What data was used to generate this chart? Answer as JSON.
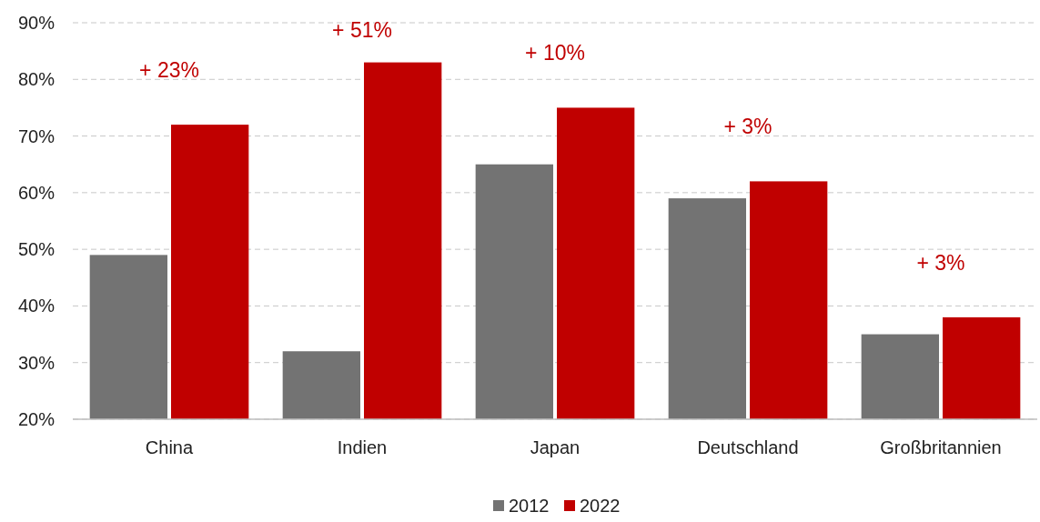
{
  "chart_data": {
    "type": "bar",
    "categories": [
      "China",
      "Indien",
      "Japan",
      "Deutschland",
      "Großbritannien"
    ],
    "series": [
      {
        "name": "2012",
        "color": "#737373",
        "values": [
          49,
          32,
          65,
          59,
          35
        ]
      },
      {
        "name": "2022",
        "color": "#c00000",
        "values": [
          72,
          83,
          75,
          62,
          38
        ]
      }
    ],
    "ylim": [
      20,
      90
    ],
    "yticks": [
      {
        "value": 20,
        "label": "20%"
      },
      {
        "value": 30,
        "label": "30%"
      },
      {
        "value": 40,
        "label": "40%"
      },
      {
        "value": 50,
        "label": "50%"
      },
      {
        "value": 60,
        "label": "60%"
      },
      {
        "value": 70,
        "label": "70%"
      },
      {
        "value": 80,
        "label": "80%"
      },
      {
        "value": 90,
        "label": "90%"
      }
    ],
    "grid": "y",
    "legend": "bottom",
    "annotations": [
      "+ 23%",
      "+ 51%",
      "+ 10%",
      "+ 3%",
      "+ 3%"
    ]
  }
}
